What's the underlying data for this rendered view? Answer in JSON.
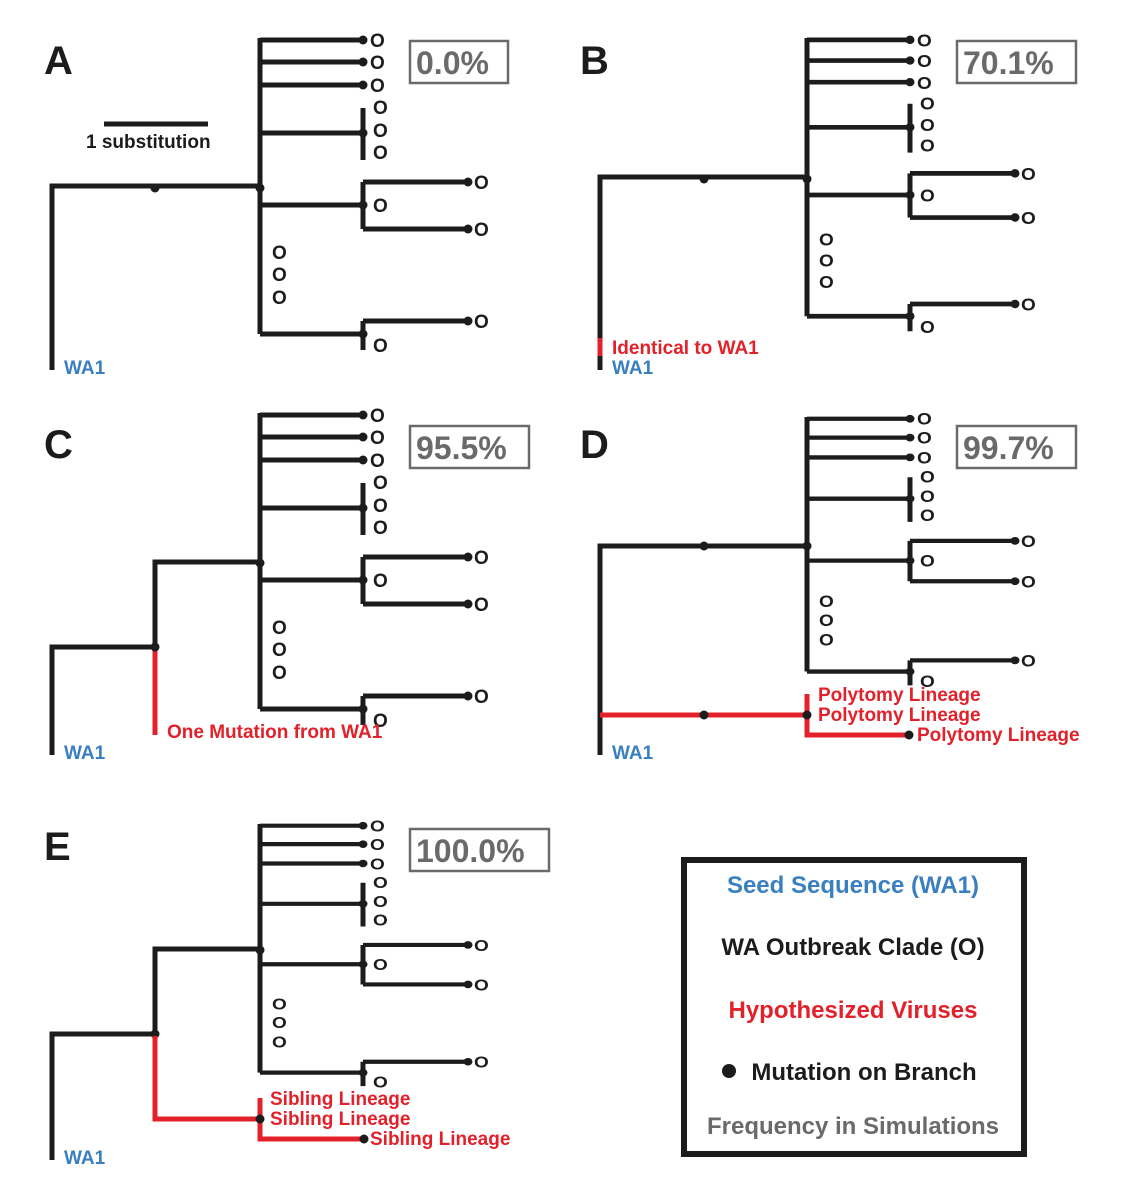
{
  "panels": [
    {
      "label": "A",
      "frequency": "0.0%",
      "red_label": "",
      "wa1_label": "WA1"
    },
    {
      "label": "B",
      "frequency": "70.1%",
      "red_label": "Identical to WA1",
      "wa1_label": "WA1"
    },
    {
      "label": "C",
      "frequency": "95.5%",
      "red_label": "One Mutation from WA1",
      "wa1_label": "WA1"
    },
    {
      "label": "D",
      "frequency": "99.7%",
      "red_label": "Polytomy Lineage",
      "wa1_label": "WA1"
    },
    {
      "label": "E",
      "frequency": "100.0%",
      "red_label": "Sibling Lineage",
      "wa1_label": "WA1"
    }
  ],
  "tip_label": "O",
  "scale_bar_label": "1 substitution",
  "legend": {
    "seed": "Seed Sequence (WA1)",
    "clade": "WA Outbreak Clade (O)",
    "hypothesized": "Hypothesized Viruses",
    "mutation": "Mutation on Branch",
    "frequency": "Frequency in Simulations"
  },
  "colors": {
    "tree": "#1c1c1c",
    "seed": "#3a7fbf",
    "hypothesized": "#e2212a",
    "frequency": "#6a6a6a"
  }
}
